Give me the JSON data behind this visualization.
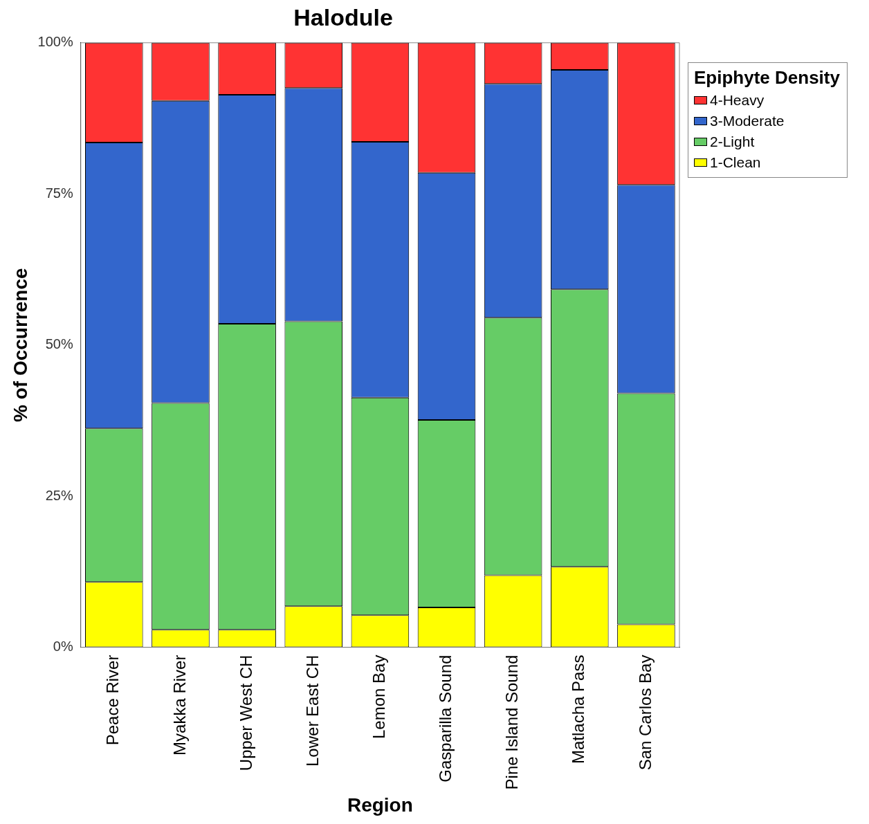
{
  "chart_data": {
    "type": "bar",
    "title": "Halodule",
    "xlabel": "Region",
    "ylabel": "% of Occurrence",
    "legend_title": "Epiphyte Density",
    "legend": "top right",
    "stacked": true,
    "categories": [
      "Peace River",
      "Myakka River",
      "Upper West CH",
      "Lower East CH",
      "Lemon Bay",
      "Gasparilla Sound",
      "Pine Island Sound",
      "Matlacha Pass",
      "San Carlos Bay"
    ],
    "series": [
      {
        "name": "1-Clean",
        "color": "#ffff00",
        "values": [
          10.8,
          2.9,
          2.9,
          6.8,
          5.3,
          6.6,
          11.9,
          13.3,
          3.8
        ]
      },
      {
        "name": "2-Light",
        "color": "#66cc66",
        "values": [
          25.4,
          37.5,
          50.6,
          47.1,
          36.0,
          31.0,
          42.6,
          45.9,
          38.2
        ]
      },
      {
        "name": "3-Moderate",
        "color": "#3366cc",
        "values": [
          47.3,
          50.0,
          37.9,
          38.6,
          42.3,
          40.9,
          38.7,
          36.3,
          34.5
        ]
      },
      {
        "name": "4-Heavy",
        "color": "#ff3333",
        "values": [
          16.5,
          9.6,
          8.6,
          7.5,
          16.4,
          21.5,
          6.8,
          4.5,
          23.5
        ]
      }
    ],
    "ylim": [
      0,
      100
    ],
    "yticks": [
      {
        "value": 0,
        "label": "0%"
      },
      {
        "value": 25,
        "label": "25%"
      },
      {
        "value": 50,
        "label": "50%"
      },
      {
        "value": 75,
        "label": "75%"
      },
      {
        "value": 100,
        "label": "100%"
      }
    ]
  }
}
